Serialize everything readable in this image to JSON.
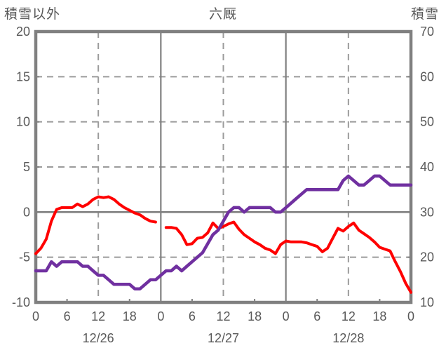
{
  "chart_data": {
    "type": "line",
    "title": "六厩",
    "left_axis_title": "積雪以外",
    "right_axis_title": "積雪",
    "left_axis": {
      "min": -10,
      "max": 20,
      "tick_step": 5,
      "ticks": [
        "20",
        "15",
        "10",
        "5",
        "0",
        "-5",
        "-10"
      ],
      "tick_values": [
        20,
        15,
        10,
        5,
        0,
        -5,
        -10
      ]
    },
    "right_axis": {
      "min": 10,
      "max": 70,
      "tick_step": 10,
      "ticks": [
        "70",
        "60",
        "50",
        "40",
        "30",
        "20",
        "10"
      ],
      "tick_values": [
        70,
        60,
        50,
        40,
        30,
        20,
        10
      ]
    },
    "x_axis": {
      "unit": "hours",
      "total_hours": 72,
      "hour_label_step": 6,
      "hour_labels": [
        "0",
        "6",
        "12",
        "18",
        "0",
        "6",
        "12",
        "18",
        "0",
        "6",
        "12",
        "18",
        "0"
      ],
      "date_labels": [
        "12/26",
        "12/27",
        "12/28"
      ]
    },
    "grid": {
      "h_solid_left_value": 0,
      "h_dashed_left_values": [
        15,
        10,
        5,
        -5
      ],
      "v_solid_hours": [
        24,
        48
      ],
      "v_dashed_hours": [
        12,
        36,
        60
      ],
      "minor_tick_hours": [
        6,
        18,
        30,
        42,
        54,
        66
      ]
    },
    "series": [
      {
        "name": "積雪以外",
        "axis": "left",
        "color": "#ff0000",
        "values": [
          -4.6,
          -4.0,
          -3.0,
          -1.0,
          0.3,
          0.5,
          0.5,
          0.5,
          0.9,
          0.6,
          0.9,
          1.4,
          1.7,
          1.6,
          1.7,
          1.4,
          0.9,
          0.5,
          0.2,
          -0.1,
          -0.3,
          -0.7,
          -1.0,
          -1.1,
          null,
          -1.7,
          -1.7,
          -1.8,
          -2.5,
          -3.6,
          -3.5,
          -2.9,
          -2.8,
          -2.3,
          -1.2,
          -1.8,
          -1.6,
          -1.3,
          -1.1,
          -1.9,
          -2.5,
          -2.9,
          -3.3,
          -3.6,
          -4.0,
          -4.2,
          -4.6,
          -3.6,
          -3.2,
          -3.3,
          -3.3,
          -3.3,
          -3.4,
          -3.6,
          -3.8,
          -4.4,
          -4.0,
          -2.9,
          -1.8,
          -2.1,
          -1.6,
          -1.2,
          -2.0,
          -2.4,
          -2.8,
          -3.3,
          -3.9,
          -4.1,
          -4.3,
          -5.5,
          -6.6,
          -7.9,
          -8.9
        ]
      },
      {
        "name": "積雪",
        "axis": "right",
        "color": "#7030a0",
        "values": [
          17,
          17,
          17,
          19,
          18,
          19,
          19,
          19,
          19,
          18,
          18,
          17,
          16,
          16,
          15,
          14,
          14,
          14,
          14,
          13,
          13,
          14,
          15,
          15,
          16,
          17,
          17,
          18,
          17,
          18,
          19,
          20,
          21,
          23,
          25,
          26,
          28,
          30,
          31,
          31,
          30,
          31,
          31,
          31,
          31,
          31,
          30,
          30,
          31,
          32,
          33,
          34,
          35,
          35,
          35,
          35,
          35,
          35,
          35,
          37,
          38,
          37,
          36,
          36,
          37,
          38,
          38,
          37,
          36,
          36,
          36,
          36,
          36
        ]
      }
    ],
    "style": {
      "axis_color": "#808080",
      "dashed_grid_color": "#9b9b9b",
      "text_color": "#595959",
      "background": "#ffffff"
    }
  }
}
